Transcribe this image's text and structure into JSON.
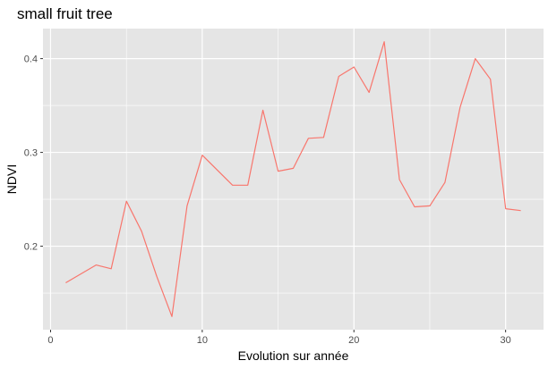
{
  "chart_data": {
    "type": "line",
    "title": "small fruit tree",
    "xlabel": "Evolution sur année",
    "ylabel": "NDVI",
    "xlim": [
      -0.5,
      32.5
    ],
    "ylim": [
      0.111,
      0.432
    ],
    "x_ticks": [
      0,
      10,
      20,
      30
    ],
    "x_minor_ticks": [
      5,
      15,
      25
    ],
    "y_ticks": [
      0.2,
      0.3,
      0.4
    ],
    "y_minor_ticks": [
      0.15,
      0.25,
      0.35
    ],
    "x_tick_labels": [
      "0",
      "10",
      "20",
      "30"
    ],
    "y_tick_labels": [
      "0.2",
      "0.3",
      "0.4"
    ],
    "grid": true,
    "colors": {
      "panel_background": "#e5e5e5",
      "grid": "#ffffff",
      "line": "#f8766d"
    },
    "x": [
      1,
      3,
      4,
      5,
      6,
      7,
      8,
      9,
      10,
      12,
      13,
      14,
      15,
      16,
      17,
      18,
      19,
      20,
      21,
      22,
      23,
      24,
      25,
      26,
      27,
      28,
      29,
      30,
      31
    ],
    "y": [
      0.161,
      0.18,
      0.176,
      0.248,
      0.216,
      0.168,
      0.125,
      0.243,
      0.297,
      0.265,
      0.265,
      0.345,
      0.28,
      0.283,
      0.315,
      0.316,
      0.381,
      0.391,
      0.364,
      0.418,
      0.271,
      0.242,
      0.243,
      0.268,
      0.348,
      0.4,
      0.378,
      0.24,
      0.238
    ]
  }
}
